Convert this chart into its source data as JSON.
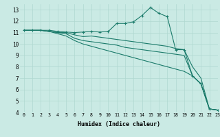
{
  "xlabel": "Humidex (Indice chaleur)",
  "bg_color": "#caeae4",
  "grid_color": "#b0d8d0",
  "line_color": "#1a7a6a",
  "xlim": [
    -0.5,
    23
  ],
  "ylim": [
    4,
    13.5
  ],
  "xticks": [
    0,
    1,
    2,
    3,
    4,
    5,
    6,
    7,
    8,
    9,
    10,
    11,
    12,
    13,
    14,
    15,
    16,
    17,
    18,
    19,
    20,
    21,
    22,
    23
  ],
  "yticks": [
    4,
    5,
    6,
    7,
    8,
    9,
    10,
    11,
    12,
    13
  ],
  "lines": [
    {
      "x": [
        0,
        1,
        2,
        3,
        4,
        5,
        6,
        7,
        8,
        9,
        10,
        11,
        12,
        13,
        14,
        15,
        16,
        17,
        18,
        19,
        20,
        21,
        22,
        23
      ],
      "y": [
        11.2,
        11.2,
        11.2,
        11.2,
        11.1,
        11.05,
        11.0,
        11.05,
        11.1,
        11.05,
        11.1,
        11.8,
        11.8,
        11.95,
        12.5,
        13.2,
        12.7,
        12.4,
        9.5,
        9.5,
        7.2,
        6.5,
        4.3,
        4.2
      ],
      "has_markers": true
    },
    {
      "x": [
        0,
        1,
        2,
        3,
        4,
        5,
        6,
        7,
        8,
        9,
        10,
        11,
        12,
        13,
        14,
        15,
        16,
        17,
        18,
        19,
        20,
        21,
        22,
        23
      ],
      "y": [
        11.2,
        11.2,
        11.2,
        11.1,
        11.0,
        11.0,
        10.8,
        10.65,
        10.7,
        10.6,
        10.5,
        10.4,
        10.3,
        10.2,
        10.1,
        10.0,
        9.9,
        9.8,
        9.6,
        9.5,
        8.0,
        7.0,
        4.3,
        4.2
      ],
      "has_markers": false
    },
    {
      "x": [
        0,
        1,
        2,
        3,
        4,
        5,
        6,
        7,
        8,
        9,
        10,
        11,
        12,
        13,
        14,
        15,
        16,
        17,
        18,
        19,
        20,
        21,
        22,
        23
      ],
      "y": [
        11.2,
        11.2,
        11.2,
        11.1,
        11.0,
        10.9,
        10.5,
        10.3,
        10.2,
        10.1,
        10.0,
        9.9,
        9.7,
        9.6,
        9.5,
        9.4,
        9.3,
        9.2,
        9.1,
        9.0,
        7.2,
        6.5,
        4.3,
        4.2
      ],
      "has_markers": false
    },
    {
      "x": [
        0,
        1,
        2,
        3,
        4,
        5,
        6,
        7,
        8,
        9,
        10,
        11,
        12,
        13,
        14,
        15,
        16,
        17,
        18,
        19,
        20,
        21,
        22,
        23
      ],
      "y": [
        11.2,
        11.2,
        11.2,
        11.1,
        10.9,
        10.7,
        10.3,
        10.0,
        9.8,
        9.6,
        9.4,
        9.2,
        9.0,
        8.8,
        8.6,
        8.4,
        8.2,
        8.0,
        7.8,
        7.6,
        7.2,
        6.5,
        4.3,
        4.2
      ],
      "has_markers": false
    }
  ]
}
